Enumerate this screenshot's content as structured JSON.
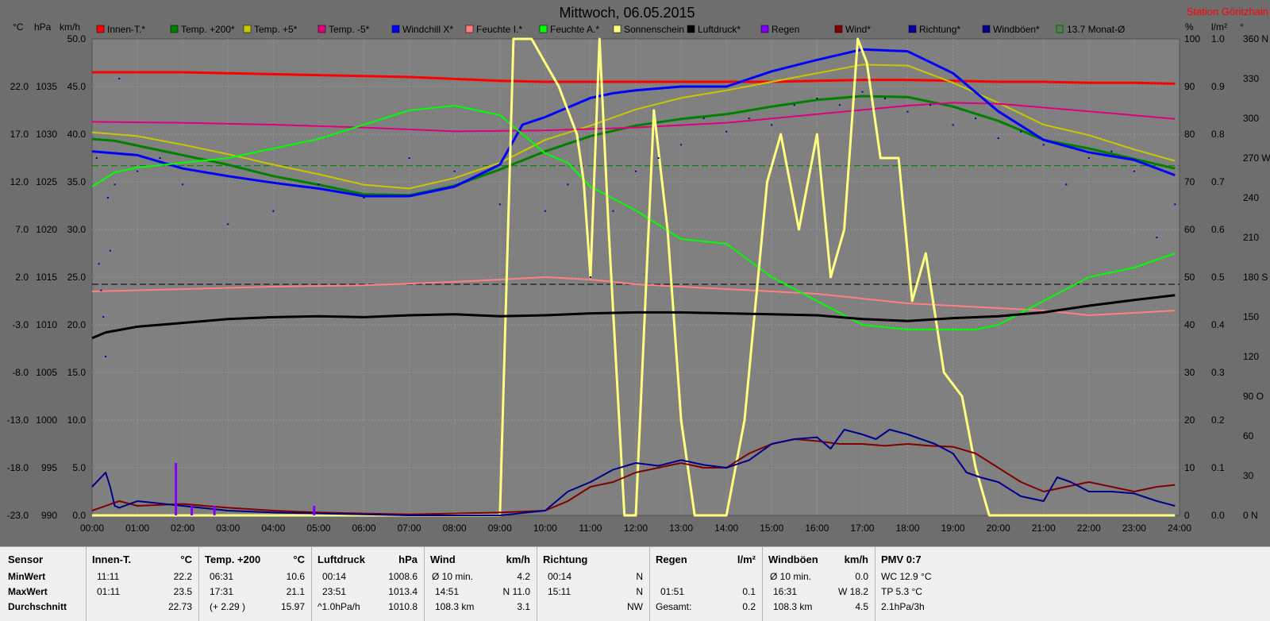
{
  "station": "Station Göritzhain",
  "colors": {
    "background": "#6e6e6e",
    "plot": "#808080",
    "innen": "#ff0000",
    "temp200": "#008000",
    "temp5": "#c8c800",
    "temp_5": "#e0007f",
    "windchill": "#0000ff",
    "feuchteI": "#ff8080",
    "feuchteA": "#00ff00",
    "sonne": "#ffff80",
    "luftdruck": "#000000",
    "regen": "#8000ff",
    "wind": "#800000",
    "richtung": "#0000a0",
    "windboeen": "#00008b",
    "monat": "#008000",
    "title_text": "#000000",
    "station_text": "#ff0000"
  },
  "chart_data": {
    "type": "line",
    "title": "Mittwoch, 06.05.2015",
    "x_label_unit": "time",
    "x_ticks": [
      "00:00",
      "01:00",
      "02:00",
      "03:00",
      "04:00",
      "05:00",
      "06:00",
      "07:00",
      "08:00",
      "09:00",
      "10:00",
      "11:00",
      "12:00",
      "13:00",
      "14:00",
      "15:00",
      "16:00",
      "17:00",
      "18:00",
      "19:00",
      "20:00",
      "21:00",
      "22:00",
      "23:00",
      "24:00"
    ],
    "xlim": [
      0,
      24
    ],
    "grid": true,
    "legend_position": "top",
    "axes": {
      "celsius": {
        "unit": "°C",
        "ticks": [
          "-23.0",
          "-18.0",
          "-13.0",
          "-8.0",
          "-3.0",
          "2.0",
          "7.0",
          "12.0",
          "17.0",
          "22.0"
        ],
        "ylim": [
          -23,
          27
        ]
      },
      "hpa": {
        "unit": "hPa",
        "ticks": [
          "990",
          "995",
          "1000",
          "1005",
          "1010",
          "1015",
          "1020",
          "1025",
          "1030",
          "1035"
        ],
        "ylim": [
          990,
          1040
        ]
      },
      "kmh": {
        "unit": "km/h",
        "ticks": [
          "0.0",
          "5.0",
          "10.0",
          "15.0",
          "20.0",
          "25.0",
          "30.0",
          "35.0",
          "40.0",
          "45.0",
          "50.0"
        ],
        "ylim": [
          0,
          50
        ]
      },
      "percent": {
        "unit": "%",
        "ticks": [
          "0",
          "10",
          "20",
          "30",
          "40",
          "50",
          "60",
          "70",
          "80",
          "90",
          "100"
        ],
        "ylim": [
          0,
          100
        ]
      },
      "lm2": {
        "unit": "l/m²",
        "ticks": [
          "0.0",
          "0.1",
          "0.2",
          "0.3",
          "0.4",
          "0.5",
          "0.6",
          "0.7",
          "0.8",
          "0.9",
          "1.0"
        ],
        "ylim": [
          0,
          1
        ]
      },
      "direction": {
        "unit": "°",
        "ticks": [
          "0  N",
          "30",
          "60",
          "90  O",
          "120",
          "150",
          "180  S",
          "210",
          "240",
          "270  W",
          "300",
          "330",
          "360  N"
        ],
        "ylim": [
          0,
          360
        ]
      }
    },
    "legend": [
      {
        "label": "Innen-T.*",
        "color": "#ff0000"
      },
      {
        "label": "Temp. +200*",
        "color": "#008000"
      },
      {
        "label": "Temp. +5*",
        "color": "#c8c800"
      },
      {
        "label": "Temp. -5*",
        "color": "#e0007f"
      },
      {
        "label": "Windchill X*",
        "color": "#0000ff"
      },
      {
        "label": "Feuchte I.*",
        "color": "#ff8080"
      },
      {
        "label": "Feuchte A.*",
        "color": "#00ff00"
      },
      {
        "label": "Sonnenschein",
        "color": "#ffff80"
      },
      {
        "label": "Luftdruck*",
        "color": "#000000"
      },
      {
        "label": "Regen",
        "color": "#8000ff"
      },
      {
        "label": "Wind*",
        "color": "#800000"
      },
      {
        "label": "Richtung*",
        "color": "#0000a0"
      },
      {
        "label": "Windböen*",
        "color": "#00008b"
      },
      {
        "label": "13.7 Monat-Ø",
        "color": "#008000"
      }
    ],
    "reference_lines": [
      {
        "name": "13.7 Monat-Ø",
        "axis": "celsius",
        "value": 13.7,
        "color": "#008000"
      },
      {
        "axis": "percent",
        "value": 48.5,
        "color": "#000000"
      }
    ],
    "series": [
      {
        "name": "Innen-T.*",
        "axis": "celsius",
        "color": "#ff0000",
        "width": 3,
        "x": [
          0,
          1,
          2,
          3,
          4,
          5,
          6,
          7,
          8,
          9,
          10,
          11,
          12,
          13,
          14,
          15,
          16,
          17,
          18,
          19,
          20,
          21,
          22,
          23,
          23.9
        ],
        "y": [
          23.5,
          23.5,
          23.5,
          23.4,
          23.3,
          23.2,
          23.1,
          23.0,
          22.8,
          22.6,
          22.5,
          22.5,
          22.5,
          22.5,
          22.5,
          22.5,
          22.6,
          22.7,
          22.7,
          22.6,
          22.5,
          22.5,
          22.4,
          22.4,
          22.3
        ]
      },
      {
        "name": "Temp. +200*",
        "axis": "celsius",
        "color": "#008000",
        "width": 3,
        "x": [
          0,
          0.5,
          1,
          2,
          3,
          4,
          5,
          6,
          7,
          8,
          9,
          10,
          11,
          12,
          13,
          14,
          15,
          16,
          17,
          18,
          19,
          20,
          21,
          22,
          23,
          23.9
        ],
        "y": [
          16.5,
          16.3,
          15.8,
          14.8,
          13.8,
          12.6,
          11.7,
          10.7,
          10.6,
          11.6,
          13.3,
          15.2,
          16.8,
          17.9,
          18.6,
          19.1,
          19.9,
          20.6,
          21.0,
          20.9,
          19.9,
          18.4,
          16.4,
          15.5,
          14.4,
          13.4
        ]
      },
      {
        "name": "Temp. +5*",
        "axis": "celsius",
        "color": "#c8c800",
        "width": 2,
        "x": [
          0,
          1,
          2,
          3,
          4,
          5,
          6,
          7,
          8,
          9,
          10,
          11,
          12,
          13,
          14,
          15,
          16,
          17,
          18,
          19,
          20,
          21,
          22,
          23,
          23.9
        ],
        "y": [
          17.2,
          16.8,
          15.9,
          14.9,
          13.8,
          12.8,
          11.7,
          11.3,
          12.4,
          14.0,
          16.4,
          17.9,
          19.6,
          20.8,
          21.6,
          22.5,
          23.4,
          24.3,
          24.2,
          22.4,
          20.3,
          18.0,
          16.9,
          15.4,
          14.2
        ]
      },
      {
        "name": "Temp. -5*",
        "axis": "celsius",
        "color": "#e0007f",
        "width": 2,
        "x": [
          0,
          2,
          4,
          6,
          8,
          10,
          12,
          14,
          16,
          18,
          19,
          20,
          22,
          23.9
        ],
        "y": [
          18.3,
          18.2,
          18.0,
          17.7,
          17.3,
          17.4,
          17.7,
          18.2,
          19.1,
          20.0,
          20.3,
          20.2,
          19.4,
          18.6
        ]
      },
      {
        "name": "Windchill X*",
        "axis": "celsius",
        "color": "#0000ff",
        "width": 3,
        "x": [
          0,
          1,
          2,
          3,
          4,
          5,
          6,
          7,
          8,
          9,
          9.5,
          10,
          11,
          11.5,
          12,
          13,
          14,
          15,
          16,
          17,
          18,
          19,
          20,
          21,
          22,
          23,
          23.9
        ],
        "y": [
          15.2,
          14.8,
          13.4,
          12.6,
          11.9,
          11.3,
          10.5,
          10.5,
          11.5,
          13.8,
          18.0,
          18.8,
          20.8,
          21.3,
          21.6,
          22.0,
          22.0,
          23.6,
          24.8,
          25.9,
          25.7,
          23.4,
          19.4,
          16.4,
          15.1,
          14.3,
          12.7
        ]
      },
      {
        "name": "Feuchte I.*",
        "axis": "percent",
        "color": "#ff8080",
        "width": 2,
        "x": [
          0,
          2,
          4,
          6,
          8,
          9,
          10,
          11,
          12,
          13,
          14,
          15,
          16,
          17,
          18,
          19,
          20,
          21,
          22,
          23,
          23.9
        ],
        "y": [
          47,
          47.5,
          48,
          48.3,
          49,
          49.5,
          50,
          49.5,
          48.5,
          48,
          47.5,
          47,
          46.5,
          45.5,
          44.5,
          44,
          43.5,
          43,
          42,
          42.5,
          43
        ]
      },
      {
        "name": "Feuchte A.*",
        "axis": "percent",
        "color": "#00ff00",
        "width": 2,
        "x": [
          0,
          0.5,
          1,
          2,
          3,
          4,
          5,
          6,
          7,
          8,
          9,
          10,
          10.5,
          11,
          12,
          13,
          14,
          15,
          16,
          17,
          18,
          19,
          19.5,
          20,
          21,
          22,
          23,
          23.9
        ],
        "y": [
          69,
          72,
          73,
          74,
          75,
          77,
          79,
          82,
          85,
          86,
          84,
          76,
          74,
          69,
          64,
          58,
          57,
          50,
          45,
          40,
          39,
          39,
          39,
          40,
          45,
          50,
          52,
          55
        ]
      },
      {
        "name": "Sonnenschein",
        "axis": "percent",
        "color": "#ffff80",
        "width": 3,
        "x": [
          0,
          8.3,
          8.6,
          9,
          9.3,
          9.7,
          10,
          10.3,
          10.7,
          10.85,
          11,
          11.2,
          11.4,
          11.75,
          12,
          12.4,
          12.7,
          13.0,
          13.3,
          13.6,
          14.0,
          14.4,
          14.9,
          15.2,
          15.6,
          16,
          16.3,
          16.6,
          16.9,
          17.1,
          17.4,
          17.8,
          18.1,
          18.4,
          18.8,
          19.2,
          19.5,
          19.8,
          20,
          23.9
        ],
        "y": [
          0,
          0,
          0,
          0,
          100,
          100,
          95,
          90,
          80,
          70,
          50,
          100,
          60,
          0,
          0,
          85,
          60,
          20,
          0,
          0,
          0,
          20,
          70,
          80,
          60,
          80,
          50,
          60,
          100,
          95,
          75,
          75,
          45,
          55,
          30,
          25,
          10,
          0,
          0,
          0
        ]
      },
      {
        "name": "Luftdruck*",
        "axis": "hpa",
        "color": "#000000",
        "width": 3,
        "x": [
          0,
          0.3,
          1,
          2,
          3,
          4,
          5,
          6,
          7,
          8,
          9,
          10,
          11,
          12,
          13,
          14,
          15,
          16,
          17,
          18,
          19,
          20,
          21,
          22,
          23,
          23.9
        ],
        "y": [
          1008.6,
          1009.2,
          1009.8,
          1010.2,
          1010.6,
          1010.8,
          1010.9,
          1010.8,
          1011.0,
          1011.1,
          1010.9,
          1011.0,
          1011.2,
          1011.3,
          1011.3,
          1011.2,
          1011.1,
          1011.0,
          1010.6,
          1010.4,
          1010.7,
          1010.9,
          1011.3,
          1012.0,
          1012.6,
          1013.1
        ]
      },
      {
        "name": "Wind*",
        "axis": "kmh",
        "color": "#800000",
        "width": 2,
        "x": [
          0,
          0.3,
          0.6,
          1,
          2,
          3,
          4,
          5,
          6,
          7,
          8,
          9,
          10,
          10.5,
          11,
          11.5,
          12,
          12.5,
          13,
          13.5,
          14,
          14.5,
          15,
          15.5,
          16,
          16.5,
          17,
          17.5,
          18,
          18.5,
          19,
          19.5,
          20,
          20.5,
          21,
          21.5,
          22,
          22.5,
          23,
          23.5,
          23.9
        ],
        "y": [
          0.5,
          1.0,
          1.5,
          1.0,
          1.2,
          0.8,
          0.5,
          0.3,
          0.2,
          0.1,
          0.2,
          0.3,
          0.5,
          1.5,
          3.0,
          3.5,
          4.5,
          5.0,
          5.5,
          5.0,
          5.0,
          6.5,
          7.5,
          8.0,
          7.8,
          7.5,
          7.5,
          7.3,
          7.5,
          7.3,
          7.2,
          6.5,
          5.0,
          3.5,
          2.5,
          3.0,
          3.5,
          3.0,
          2.5,
          3.0,
          3.2
        ]
      },
      {
        "name": "Windböen*",
        "axis": "kmh",
        "color": "#00008b",
        "width": 2,
        "x": [
          0,
          0.2,
          0.3,
          0.4,
          0.5,
          0.6,
          1,
          2,
          3,
          4,
          5,
          6,
          7,
          8,
          9,
          10,
          10.5,
          11,
          11.5,
          12,
          12.5,
          13,
          13.5,
          14,
          14.5,
          15,
          15.5,
          16,
          16.3,
          16.6,
          17,
          17.3,
          17.6,
          18,
          18.3,
          18.6,
          19,
          19.3,
          19.6,
          20,
          20.5,
          21,
          21.3,
          21.6,
          22,
          22.5,
          23,
          23.5,
          23.9
        ],
        "y": [
          3.0,
          4.0,
          4.5,
          3.0,
          1.0,
          0.8,
          1.5,
          1.0,
          0.5,
          0.3,
          0.2,
          0.1,
          0,
          0,
          0,
          0.5,
          2.5,
          3.5,
          4.8,
          5.5,
          5.2,
          5.8,
          5.3,
          5.0,
          5.8,
          7.5,
          8.0,
          8.2,
          7.0,
          9.0,
          8.5,
          8.0,
          9.0,
          8.5,
          8.0,
          7.5,
          6.5,
          4.5,
          4.0,
          3.5,
          2.0,
          1.5,
          4.0,
          3.5,
          2.5,
          2.5,
          2.3,
          1.5,
          1.0
        ]
      },
      {
        "name": "Regen",
        "axis": "lm2",
        "color": "#8000ff",
        "width": 3,
        "type": "bar",
        "x": [
          1.85,
          2.2,
          2.7,
          4.9
        ],
        "y": [
          0.11,
          0.02,
          0.02,
          0.02
        ]
      },
      {
        "name": "Richtung*",
        "axis": "direction",
        "color": "#0000a0",
        "type": "scatter",
        "x": [
          0.1,
          0.15,
          0.2,
          0.25,
          0.3,
          0.35,
          0.4,
          0.5,
          0.6,
          1,
          1.5,
          2,
          3,
          4,
          5,
          6,
          7,
          8,
          9,
          10,
          10.5,
          11,
          11.5,
          12,
          12.5,
          13,
          13.5,
          14,
          14.5,
          15,
          15.5,
          16,
          16.5,
          17,
          17.5,
          18,
          18.5,
          19,
          19.5,
          20,
          20.5,
          21,
          21.5,
          22,
          22.5,
          23,
          23.5,
          23.9
        ],
        "y": [
          270,
          190,
          170,
          150,
          120,
          240,
          200,
          250,
          330,
          260,
          270,
          250,
          220,
          230,
          250,
          240,
          270,
          260,
          235,
          230,
          250,
          180,
          230,
          260,
          270,
          280,
          300,
          290,
          300,
          295,
          310,
          315,
          310,
          320,
          315,
          305,
          310,
          295,
          300,
          285,
          290,
          280,
          250,
          270,
          275,
          260,
          210,
          235
        ]
      }
    ]
  },
  "stats": {
    "sensor": {
      "header": "Sensor",
      "rows": [
        "MinWert",
        "MaxWert",
        "Durchschnitt"
      ]
    },
    "innen": {
      "header": "Innen-T.",
      "unit": "°C",
      "rows": [
        [
          "11:11",
          "22.2"
        ],
        [
          "01:11",
          "23.5"
        ],
        [
          "",
          "22.73"
        ]
      ]
    },
    "temp200": {
      "header": "Temp. +200",
      "unit": "°C",
      "rows": [
        [
          "06:31",
          "10.6"
        ],
        [
          "17:31",
          "21.1"
        ],
        [
          "(+ 2.29 )",
          "15.97"
        ]
      ]
    },
    "luftdruck": {
      "header": "Luftdruck",
      "unit": "hPa",
      "rows": [
        [
          "00:14",
          "1008.6"
        ],
        [
          "23:51",
          "1013.4"
        ],
        [
          "^1.0hPa/h",
          "1010.8"
        ]
      ]
    },
    "wind": {
      "header": "Wind",
      "unit": "km/h",
      "rows": [
        [
          "Ø 10 min.",
          "4.2"
        ],
        [
          "14:51",
          "N 11.0"
        ],
        [
          "108.3 km",
          "3.1"
        ]
      ]
    },
    "richtung": {
      "header": "Richtung",
      "rows": [
        [
          "00:14",
          "N"
        ],
        [
          "15:11",
          "N"
        ],
        [
          "",
          "NW"
        ]
      ]
    },
    "regen": {
      "header": "Regen",
      "unit": "l/m²",
      "rows": [
        [
          "",
          ""
        ],
        [
          "01:51",
          "0.1"
        ],
        [
          "Gesamt:",
          "0.2"
        ]
      ]
    },
    "windboeen": {
      "header": "Windböen",
      "unit": "km/h",
      "rows": [
        [
          "Ø 10 min.",
          "0.0"
        ],
        [
          "16:31",
          "W 18.2"
        ],
        [
          "108.3 km",
          "4.5"
        ]
      ]
    },
    "pmv": {
      "header": "PMV 0:7",
      "rows": [
        "WC 12.9 °C",
        "TP 5.3 °C",
        "2.1hPa/3h"
      ]
    }
  }
}
